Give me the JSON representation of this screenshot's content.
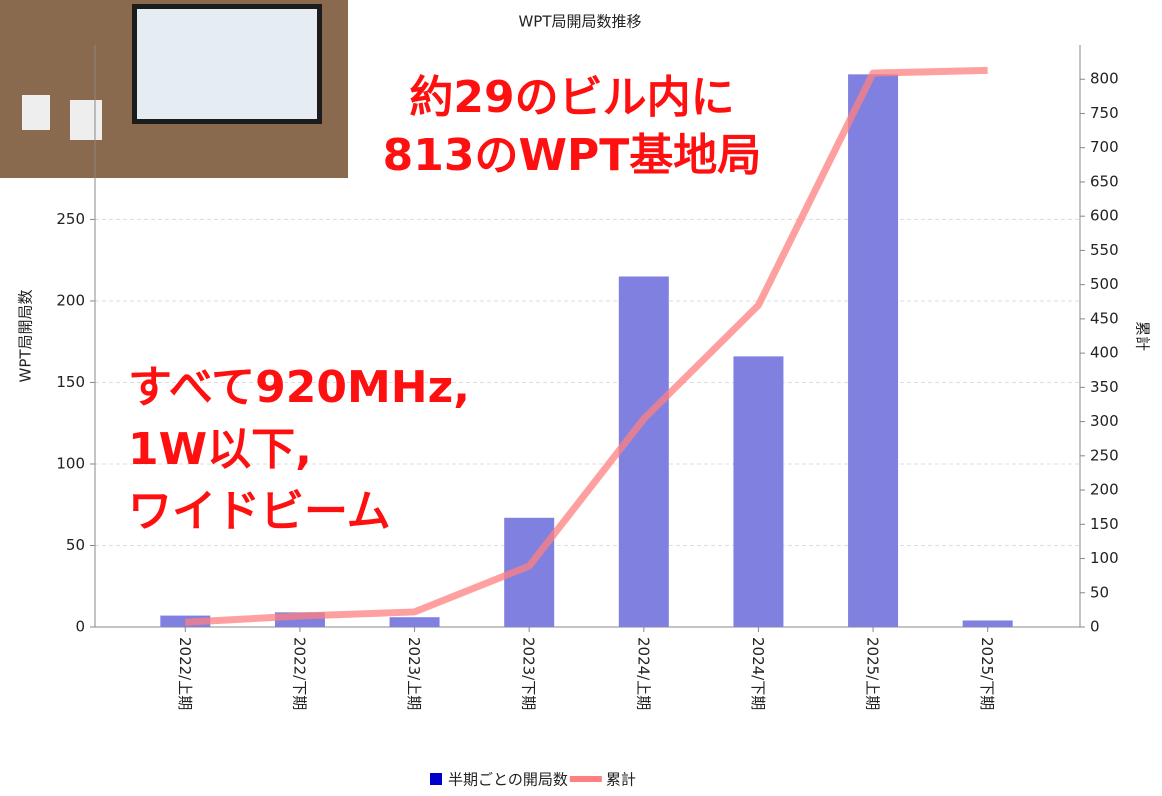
{
  "chart_data": {
    "type": "bar_line",
    "title": "WPT局開局数推移",
    "y_label": "WPT局開局数",
    "y2_label": "累計",
    "categories": [
      "2022/上期",
      "2022/下期",
      "2023/上期",
      "2023/下期",
      "2024/上期",
      "2024/下期",
      "2025/上期",
      "2025/下期"
    ],
    "series": [
      {
        "name": "半期ごとの開局数",
        "type": "bar",
        "color": "#8080e0",
        "legend_color": "#0000cc",
        "values": [
          7,
          9,
          6,
          67,
          215,
          166,
          339,
          4
        ]
      },
      {
        "name": "累計",
        "type": "line",
        "axis": "y2",
        "color": "#ff8080",
        "values": [
          7,
          16,
          22,
          89,
          304,
          470,
          809,
          813
        ]
      }
    ],
    "ylim": [
      0,
      357
    ],
    "yticks": [
      0,
      50,
      100,
      150,
      200,
      250
    ],
    "y2lim": [
      0,
      850
    ],
    "y2ticks": [
      0,
      50,
      100,
      150,
      200,
      250,
      300,
      350,
      400,
      450,
      500,
      550,
      600,
      650,
      700,
      750,
      800
    ],
    "grid": true,
    "annotations": [
      {
        "lines": [
          "約29のビル内に",
          "813のWPT基地局"
        ]
      },
      {
        "lines": [
          "すべて920MHz,",
          "1W以下,",
          "ワイドビーム"
        ]
      }
    ]
  }
}
